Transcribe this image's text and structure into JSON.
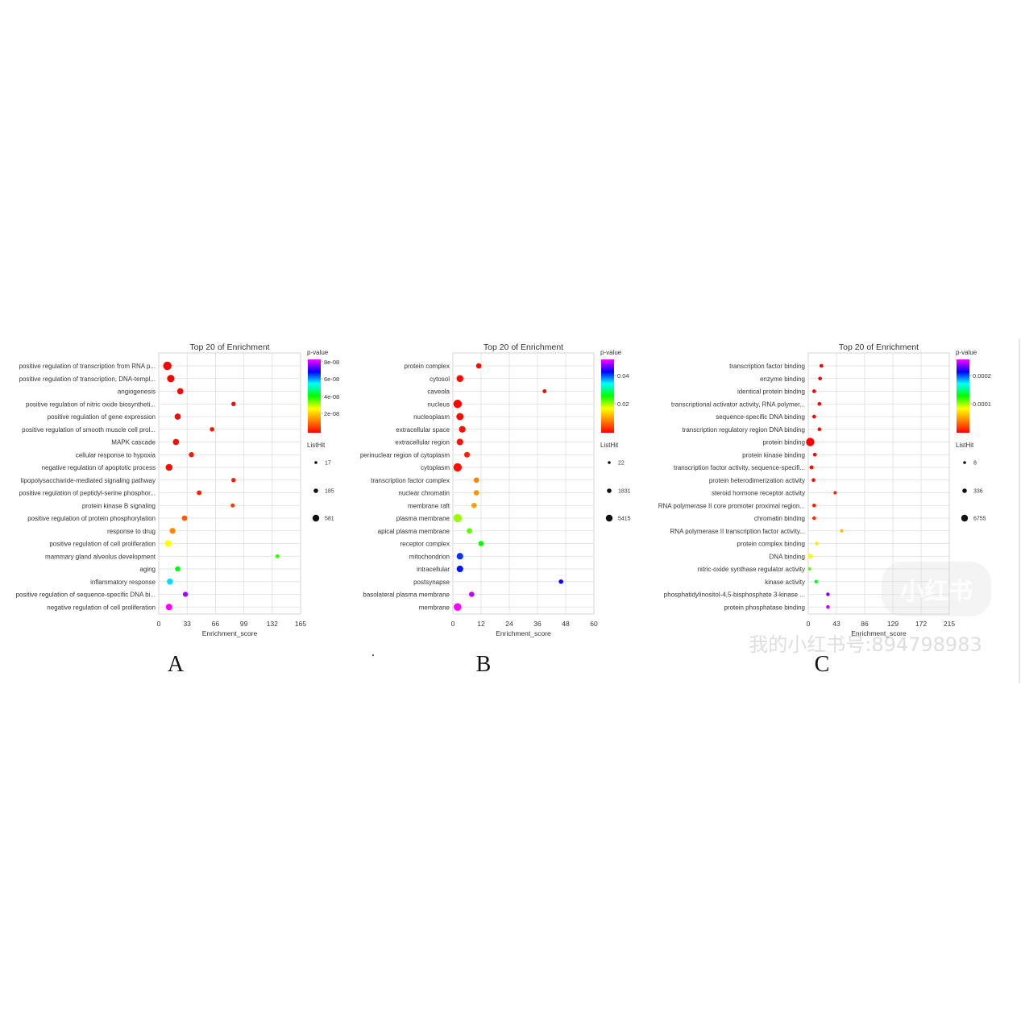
{
  "charts_meta": {
    "panel_letters": [
      "A",
      "B",
      "C"
    ],
    "colors": {
      "text": "#333333",
      "grid": "#dddddd",
      "axis": "#bbbbbb",
      "frame": "#cccccc"
    },
    "colorscale": [
      "#ff0000",
      "#ff8800",
      "#ffff00",
      "#00ff00",
      "#00ffff",
      "#0000ff",
      "#ff00ff"
    ]
  },
  "chart_data": [
    {
      "type": "scatter",
      "panel": "A",
      "title": "Top 20 of  Enrichment",
      "xlabel": "Enrichment_score",
      "xticks": [
        "0",
        "33",
        "66",
        "99",
        "132",
        "165"
      ],
      "xlim": [
        0,
        165
      ],
      "color_legend": {
        "title": "p-value",
        "labels": [
          "8e-08",
          "6e-08",
          "4e-08",
          "2e-08"
        ],
        "range": [
          0,
          9e-08
        ]
      },
      "size_legend": {
        "title": "ListHit",
        "labels": [
          "17",
          "185",
          "581"
        ]
      },
      "categories": [
        "positive regulation of transcription from RNA p...",
        "positive regulation of transcription, DNA-templ...",
        "angiogenesis",
        "positive regulation of nitric oxide biosyntheti...",
        "positive regulation of gene expression",
        "positive regulation of smooth muscle cell prol...",
        "MAPK cascade",
        "cellular response to hypoxia",
        "negative regulation of apoptotic process",
        "lipopolysaccharide-mediated signaling pathway",
        "positive regulation of peptidyl-serine phosphor...",
        "protein kinase B signaling",
        "positive regulation of protein phosphorylation",
        "response to drug",
        "positive regulation of cell proliferation",
        "mammary gland alveolus development",
        "aging",
        "inflammatory response",
        "positive regulation of sequence-specific DNA bi...",
        "negative regulation of cell proliferation"
      ],
      "x": [
        10,
        14,
        25,
        87,
        22,
        62,
        20,
        38,
        12,
        87,
        47,
        86,
        30,
        16,
        11,
        138,
        22,
        13,
        31,
        12
      ],
      "pvalue": [
        1e-10,
        1e-10,
        5e-10,
        1e-09,
        5e-10,
        2e-09,
        1e-09,
        3e-09,
        1e-09,
        3e-09,
        3e-09,
        6e-09,
        1e-08,
        1.5e-08,
        3e-08,
        4.2e-08,
        4.5e-08,
        6.2e-08,
        8.5e-08,
        9e-08
      ],
      "listhit": [
        581,
        400,
        220,
        60,
        220,
        60,
        220,
        120,
        320,
        60,
        80,
        40,
        150,
        190,
        320,
        40,
        120,
        220,
        110,
        260
      ]
    },
    {
      "type": "scatter",
      "panel": "B",
      "title": "Top 20 of  Enrichment",
      "xlabel": "Enrichment_score",
      "xticks": [
        "0",
        "12",
        "24",
        "36",
        "48",
        "60"
      ],
      "xlim": [
        0,
        60
      ],
      "color_legend": {
        "title": "p-value",
        "labels": [
          "0.04",
          "0.02"
        ],
        "range": [
          0,
          0.05
        ]
      },
      "size_legend": {
        "title": "ListHit",
        "labels": [
          "22",
          "1831",
          "5415"
        ]
      },
      "categories": [
        "protein complex",
        "cytosol",
        "caveola",
        "nucleus",
        "nucleoplasm",
        "extracellular space",
        "extracellular region",
        "perinuclear region of cytoplasm",
        "cytoplasm",
        "transcription factor complex",
        "nuclear chromatin",
        "membrane raft",
        "plasma membrane",
        "apical plasma membrane",
        "receptor complex",
        "mitochondrion",
        "intracellular",
        "postsynapse",
        "basolateral plasma membrane",
        "membrane"
      ],
      "x": [
        11,
        3,
        39,
        2,
        3,
        4,
        3,
        6,
        2,
        10,
        10,
        9,
        2,
        7,
        12,
        3,
        3,
        46,
        8,
        2
      ],
      "pvalue": [
        0.0005,
        0.0005,
        0.0008,
        0.0002,
        0.0005,
        0.0008,
        0.001,
        0.002,
        0.0008,
        0.008,
        0.009,
        0.01,
        0.02,
        0.022,
        0.025,
        0.04,
        0.041,
        0.042,
        0.048,
        0.05
      ],
      "listhit": [
        1200,
        3000,
        300,
        5415,
        3400,
        2600,
        2600,
        1600,
        5415,
        1200,
        1200,
        1200,
        5415,
        1300,
        1200,
        2600,
        2600,
        600,
        1200,
        4200
      ]
    },
    {
      "type": "scatter",
      "panel": "C",
      "title": "Top 20 of  Enrichment",
      "xlabel": "Enrichment_score",
      "xticks": [
        "0",
        "43",
        "86",
        "129",
        "172",
        "215"
      ],
      "xlim": [
        0,
        215
      ],
      "color_legend": {
        "title": "p-value",
        "labels": [
          "0.0002",
          "0.0001"
        ],
        "range": [
          0,
          0.00025
        ]
      },
      "size_legend": {
        "title": "ListHit",
        "labels": [
          "8",
          "336",
          "6755"
        ]
      },
      "categories": [
        "transcription factor binding",
        "enzyme binding",
        "identical protein binding",
        "transcriptional activator activity, RNA polymer...",
        "sequence-specific DNA binding",
        "transcription regulatory region DNA binding",
        "protein binding",
        "protein kinase binding",
        "transcription factor activity, sequence-specifi...",
        "protein heterodimerization activity",
        "steroid hormone receptor activity",
        "RNA polymerase II core promoter proximal region...",
        "chromatin binding",
        "RNA polymerase II transcription factor activity...",
        "protein complex binding",
        "DNA binding",
        "nitric-oxide synthase regulator activity",
        "kinase activity",
        "phosphatidylinositol-4,5-bisphosphate 3-kinase ...",
        "protein phosphatase binding"
      ],
      "x": [
        20,
        18,
        9,
        17,
        9,
        17,
        3,
        10,
        5,
        8,
        41,
        9,
        9,
        51,
        13,
        3,
        2,
        12,
        30,
        30
      ],
      "pvalue": [
        5e-07,
        1e-06,
        1e-06,
        2e-06,
        2e-06,
        3e-06,
        1e-07,
        3e-06,
        5e-06,
        5e-06,
        1e-05,
        1e-05,
        1.5e-05,
        6e-05,
        7.5e-05,
        8.5e-05,
        0.00011,
        0.00013,
        0.00023,
        0.00024
      ],
      "listhit": [
        300,
        300,
        300,
        300,
        300,
        300,
        6755,
        300,
        450,
        300,
        150,
        300,
        300,
        150,
        200,
        1200,
        100,
        200,
        200,
        200
      ]
    }
  ],
  "watermark": {
    "logo": "小红书",
    "text": "我的小红书号:894798983"
  }
}
